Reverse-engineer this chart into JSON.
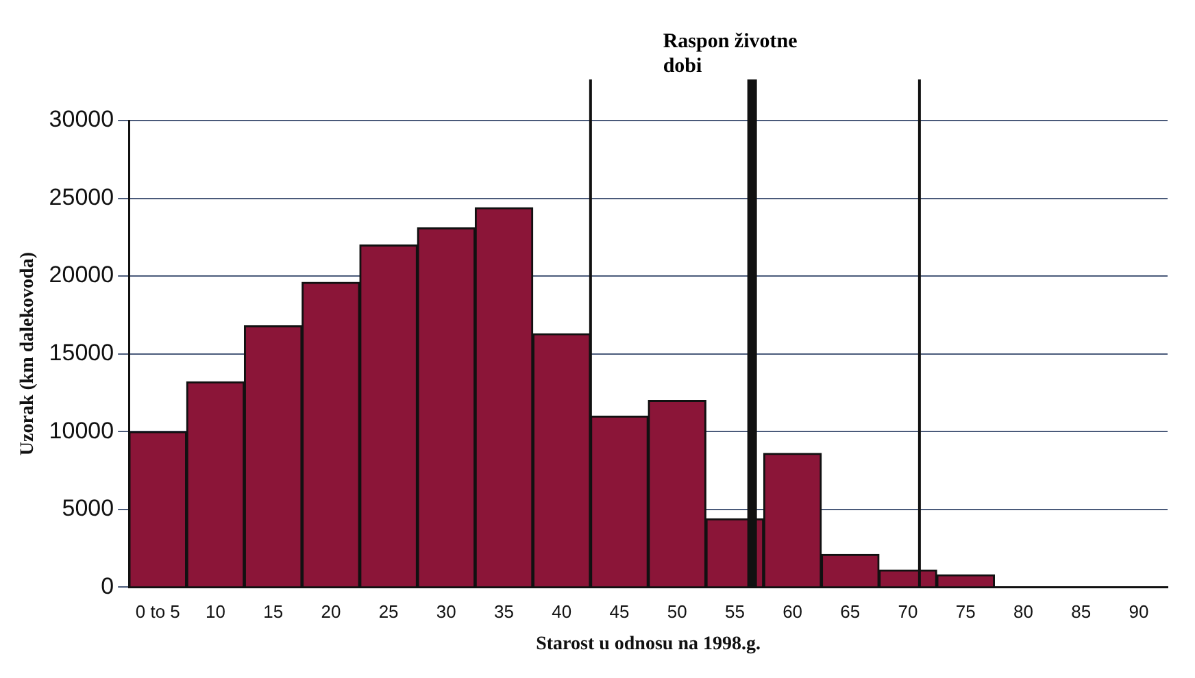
{
  "chart_data": {
    "type": "bar",
    "x": [
      5,
      10,
      15,
      20,
      25,
      30,
      35,
      40,
      45,
      50,
      55,
      60,
      65,
      70,
      75,
      80,
      85,
      90
    ],
    "values": [
      10000,
      13200,
      16800,
      19600,
      22000,
      23100,
      24400,
      16300,
      11000,
      12000,
      4400,
      8600,
      2100,
      1100,
      800,
      0,
      0,
      0
    ],
    "color": "#8b1538",
    "xlim": [
      2.5,
      92.5
    ],
    "xticks": [
      {
        "value": 5,
        "label": "0 to 5"
      },
      10,
      15,
      20,
      25,
      30,
      35,
      40,
      45,
      50,
      55,
      60,
      65,
      70,
      75,
      80,
      85,
      90
    ],
    "ylim": [
      0,
      30000
    ],
    "yticks": [
      0,
      5000,
      10000,
      15000,
      20000,
      25000,
      30000
    ],
    "xlabel": "Starost u odnosu na 1998.g.",
    "ylabel": "Uzorak (km dalekovoda)",
    "ref_lines": [
      {
        "axis": "x",
        "value": 42.5
      },
      {
        "axis": "x",
        "value": 56.5,
        "label": "Raspon životne dobi"
      },
      {
        "axis": "x",
        "value": 71
      }
    ],
    "grid": "y"
  }
}
